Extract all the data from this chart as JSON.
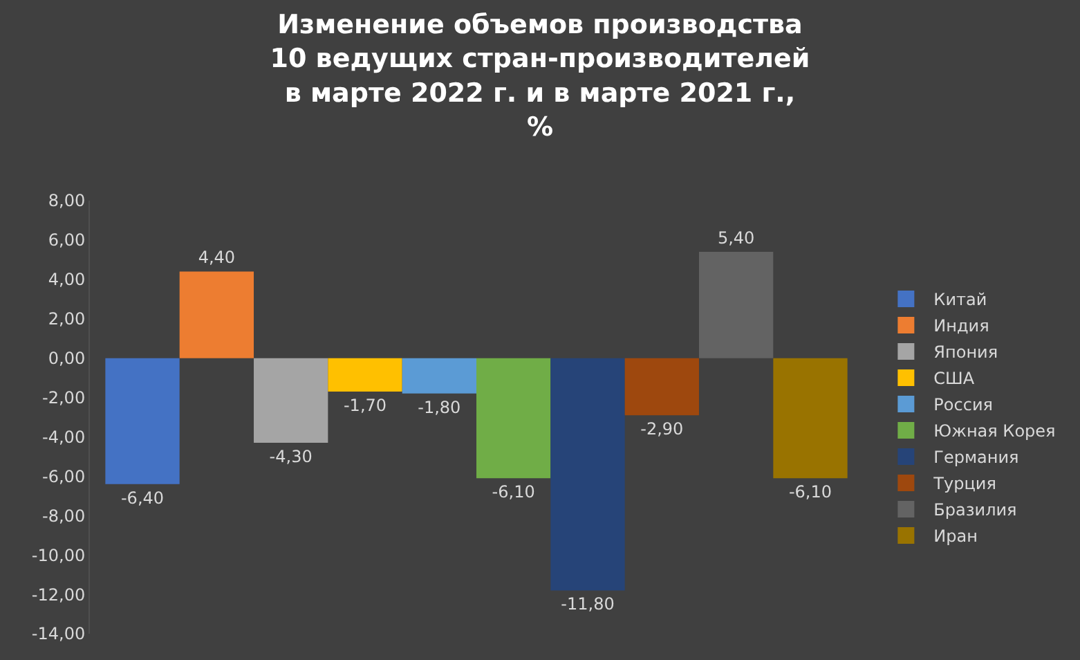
{
  "chart_data": {
    "type": "bar",
    "title": "Изменение объемов производства\n10 ведущих стран-производителей\nв марте 2022 г. и в марте 2021 г.,\n%",
    "categories": [
      null
    ],
    "series": [
      {
        "name": "Китай",
        "color": "#4472c4",
        "values": [
          -6.4
        ],
        "value_labels": [
          "-6,40"
        ]
      },
      {
        "name": "Индия",
        "color": "#ed7d31",
        "values": [
          4.4
        ],
        "value_labels": [
          "4,40"
        ]
      },
      {
        "name": "Япония",
        "color": "#a5a5a5",
        "values": [
          -4.3
        ],
        "value_labels": [
          "-4,30"
        ]
      },
      {
        "name": "США",
        "color": "#ffc000",
        "values": [
          -1.7
        ],
        "value_labels": [
          "-1,70"
        ]
      },
      {
        "name": "Россия",
        "color": "#5b9bd5",
        "values": [
          -1.8
        ],
        "value_labels": [
          "-1,80"
        ]
      },
      {
        "name": "Южная Корея",
        "color": "#70ad47",
        "values": [
          -6.1
        ],
        "value_labels": [
          "-6,10"
        ]
      },
      {
        "name": "Германия",
        "color": "#264478",
        "values": [
          -11.8
        ],
        "value_labels": [
          "-11,80"
        ]
      },
      {
        "name": "Турция",
        "color": "#9e480e",
        "values": [
          -2.9
        ],
        "value_labels": [
          "-2,90"
        ]
      },
      {
        "name": "Бразилия",
        "color": "#636363",
        "values": [
          5.4
        ],
        "value_labels": [
          "5,40"
        ]
      },
      {
        "name": "Иран",
        "color": "#997300",
        "values": [
          -6.1
        ],
        "value_labels": [
          "-6,10"
        ]
      }
    ],
    "ylim": [
      -14,
      8
    ],
    "yticks": [
      {
        "value": -14,
        "label": "-14,00"
      },
      {
        "value": -12,
        "label": "-12,00"
      },
      {
        "value": -10,
        "label": "-10,00"
      },
      {
        "value": -8,
        "label": "-8,00"
      },
      {
        "value": -6,
        "label": "-6,00"
      },
      {
        "value": -4,
        "label": "-4,00"
      },
      {
        "value": -2,
        "label": "-2,00"
      },
      {
        "value": 0,
        "label": "0,00"
      },
      {
        "value": 2,
        "label": "2,00"
      },
      {
        "value": 4,
        "label": "4,00"
      },
      {
        "value": 6,
        "label": "6,00"
      },
      {
        "value": 8,
        "label": "8,00"
      }
    ],
    "legend": "right",
    "grid": false
  }
}
